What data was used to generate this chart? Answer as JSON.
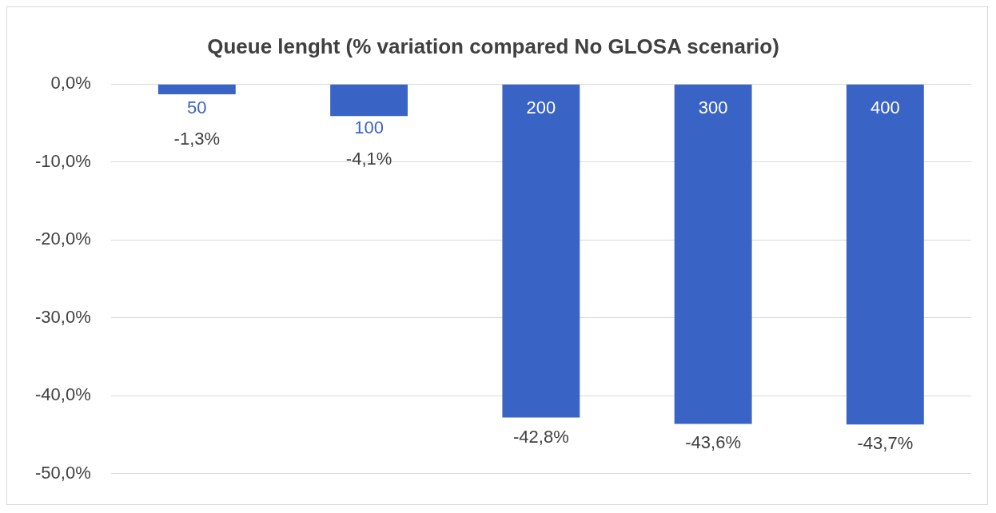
{
  "chart_data": {
    "type": "bar",
    "title": "Queue lenght (% variation compared No GLOSA scenario)",
    "categories": [
      "50",
      "100",
      "200",
      "300",
      "400"
    ],
    "values": [
      -1.3,
      -4.1,
      -42.8,
      -43.6,
      -43.7
    ],
    "value_labels": [
      "-1,3%",
      "-4,1%",
      "-42,8%",
      "-43,6%",
      "-43,7%"
    ],
    "color": "#3a63c6",
    "ylim": [
      -50,
      0
    ],
    "yticks": [
      {
        "value": 0,
        "label": "0,0%"
      },
      {
        "value": -10,
        "label": "-10,0%"
      },
      {
        "value": -20,
        "label": "-20,0%"
      },
      {
        "value": -30,
        "label": "-30,0%"
      },
      {
        "value": -40,
        "label": "-40,0%"
      },
      {
        "value": -50,
        "label": "-50,0%"
      }
    ],
    "grid": "y",
    "legend": false
  }
}
